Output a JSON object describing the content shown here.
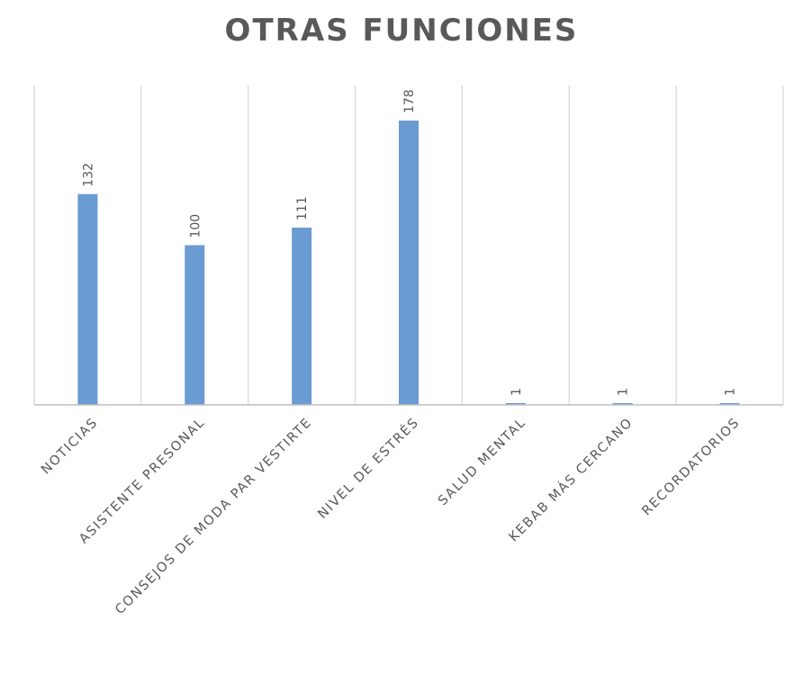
{
  "chart_data": {
    "type": "bar",
    "title": "OTRAS FUNCIONES",
    "categories": [
      "NOTICIAS",
      "ASISTENTE PRESONAL",
      "CONSEJOS DE MODA PAR VESTIRTE",
      "NIVEL DE ESTRÉS",
      "SALUD MENTAL",
      "KEBAB MÁS CERCANO",
      "RECORDATORIOS"
    ],
    "values": [
      132,
      100,
      111,
      178,
      1,
      1,
      1
    ],
    "data_labels": [
      "132",
      "100",
      "111",
      "178",
      "1",
      "1",
      "1"
    ],
    "ylim": [
      0,
      200
    ],
    "grid": "vertical",
    "legend": "none",
    "colors": {
      "bar": "#6a9bd2",
      "gridline": "#d9d9d9",
      "axis": "#bfbfbf",
      "text": "#595959"
    }
  }
}
